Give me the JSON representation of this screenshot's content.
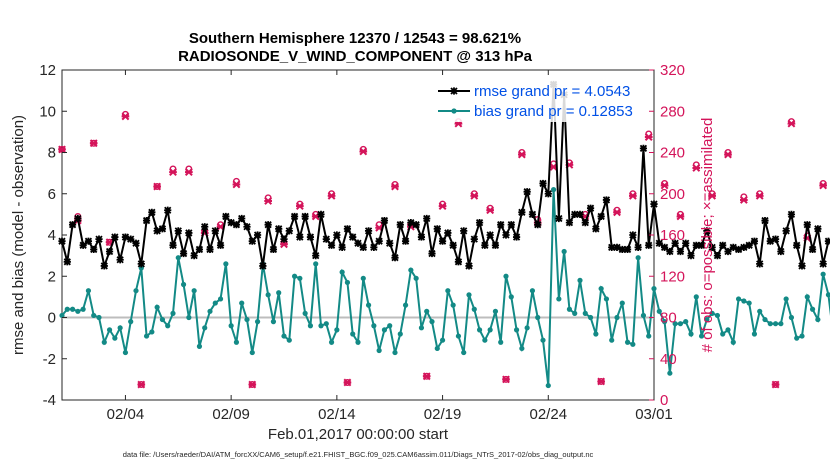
{
  "chart_data": {
    "type": "line",
    "title_line1": "Southern Hemisphere 12370 / 12543 = 98.621%",
    "title_line2": "RADIOSONDE_V_WIND_COMPONENT @ 313 hPa",
    "xlabel": "Feb.01,2017 00:00:00 start",
    "ylabel_left": "rmse and bias (model - observation)",
    "ylabel_right": "# of obs: o=possible; ×=assimilated",
    "footnote": "data file: /Users/raeder/DAI/ATM_forcXX/CAM6_setup/f.e21.FHIST_BGC.f09_025.CAM6assim.011/Diags_NTrS_2017-02/obs_diag_output.nc",
    "ylim_left": [
      -4,
      12
    ],
    "ylim_right": [
      0,
      320
    ],
    "xlim": [
      0.0,
      28.0
    ],
    "y_ticks_left": [
      "-4",
      "-2",
      "0",
      "2",
      "4",
      "6",
      "8",
      "10",
      "12"
    ],
    "y_ticks_right": [
      "0",
      "40",
      "80",
      "120",
      "160",
      "200",
      "240",
      "280",
      "320"
    ],
    "x_ticks": [
      {
        "label": "02/04",
        "pos": 3
      },
      {
        "label": "02/09",
        "pos": 8
      },
      {
        "label": "02/14",
        "pos": 13
      },
      {
        "label": "02/19",
        "pos": 18
      },
      {
        "label": "02/24",
        "pos": 23
      },
      {
        "label": "03/01",
        "pos": 28
      }
    ],
    "colors": {
      "rmse": "#000000",
      "bias": "#138a86",
      "obs": "#d4145a",
      "zero": "#bdbdbd",
      "legend_text": "#0050e6"
    },
    "legend": [
      {
        "name": "rmse grand pr = 4.0543",
        "series": "rmse"
      },
      {
        "name": "bias grand pr = 0.12853",
        "series": "bias"
      }
    ],
    "series": [
      {
        "name": "rmse",
        "x_start": 0.0,
        "x_step": 0.25,
        "values": [
          3.7,
          2.7,
          4.5,
          4.8,
          3.5,
          3.7,
          3.3,
          3.8,
          2.5,
          3.2,
          3.9,
          2.8,
          3.9,
          3.8,
          3.6,
          2.6,
          4.7,
          5.1,
          4.2,
          4.3,
          5.2,
          3.5,
          4.2,
          3.1,
          4.1,
          3.0,
          3.3,
          4.4,
          3.3,
          4.2,
          3.5,
          4.9,
          4.6,
          4.5,
          4.8,
          4.4,
          3.7,
          4.0,
          2.5,
          4.5,
          3.3,
          4.3,
          3.8,
          4.2,
          4.9,
          3.9,
          4.9,
          3.9,
          3.0,
          5.0,
          3.8,
          3.5,
          4.0,
          3.4,
          4.3,
          3.9,
          3.6,
          3.4,
          4.2,
          3.4,
          3.7,
          4.7,
          3.6,
          2.9,
          4.5,
          3.7,
          4.6,
          4.5,
          3.9,
          4.8,
          3.1,
          4.3,
          3.7,
          4.1,
          3.5,
          2.7,
          4.2,
          2.5,
          3.8,
          4.6,
          3.5,
          4.0,
          3.5,
          4.5,
          4.0,
          4.5,
          3.9,
          5.1,
          6.1,
          5.0,
          4.5,
          6.5,
          6.0,
          11.3,
          4.8,
          10.8,
          4.6,
          5.0,
          5.0,
          4.6,
          5.3,
          4.3,
          4.9,
          5.7,
          3.4,
          3.4,
          3.3,
          3.3,
          4.0,
          3.4,
          8.2,
          3.5,
          5.5,
          3.6,
          3.4,
          3.2,
          3.6,
          3.2,
          3.6,
          3.0,
          3.5,
          3.5,
          4.2,
          3.4,
          3.0,
          3.5,
          3.2,
          3.4,
          3.3,
          3.4,
          3.5,
          3.7,
          2.6,
          4.7,
          3.7,
          3.8,
          3.2,
          4.2,
          5.0,
          3.5,
          2.5,
          4.5,
          3.3,
          4.3,
          2.6,
          3.7,
          3.5,
          3.5,
          3.1,
          3.5,
          3.1,
          3.4,
          3.6,
          3.2,
          3.4,
          3.5,
          3.4
        ]
      },
      {
        "name": "bias",
        "x_start": 0.0,
        "x_step": 0.25,
        "values": [
          0.1,
          0.4,
          0.4,
          0.3,
          0.4,
          1.3,
          0.1,
          0.0,
          -1.2,
          -0.6,
          -1.0,
          -0.5,
          -1.7,
          -0.2,
          1.3,
          2.4,
          -0.9,
          -0.7,
          0.5,
          -0.1,
          -0.4,
          0.2,
          2.9,
          1.6,
          0.0,
          1.3,
          -1.4,
          -0.5,
          0.3,
          0.7,
          0.9,
          2.6,
          -0.4,
          -1.2,
          0.7,
          -0.1,
          -1.7,
          -0.2,
          2.6,
          1.1,
          -0.2,
          1.2,
          -0.9,
          -1.1,
          2.0,
          1.9,
          0.2,
          -0.4,
          2.6,
          -0.4,
          -0.3,
          -1.2,
          -0.6,
          2.2,
          1.7,
          -0.8,
          -1.2,
          1.9,
          0.6,
          -0.4,
          -1.6,
          -0.6,
          -0.4,
          -1.7,
          -0.8,
          0.6,
          2.3,
          1.9,
          -0.5,
          0.3,
          -0.2,
          -1.5,
          -1.1,
          1.3,
          0.6,
          -0.9,
          -1.7,
          1.1,
          0.4,
          -0.6,
          -1.1,
          -0.6,
          0.3,
          -1.2,
          2.0,
          1.0,
          -0.6,
          -1.5,
          -0.5,
          1.3,
          0.0,
          -1.1,
          -3.3,
          6.2,
          0.9,
          3.2,
          0.4,
          0.2,
          1.8,
          0.2,
          0.0,
          -0.8,
          1.4,
          0.9,
          -1.1,
          0.0,
          0.7,
          -1.2,
          -1.3,
          2.9,
          0.1,
          -0.9,
          1.4,
          0.3,
          -0.2,
          -2.7,
          -0.3,
          -0.3,
          -0.2,
          -0.8,
          1.0,
          -0.9,
          -0.1,
          0.2,
          0.1,
          -0.8,
          -0.6,
          -1.2,
          0.9,
          0.8,
          0.7,
          -0.8,
          0.3,
          -0.1,
          -0.3,
          -0.3,
          -0.3,
          0.9,
          0.0,
          -1.0,
          -0.9,
          1.0,
          0.4,
          -0.1,
          2.1,
          1.1,
          -1.0,
          -1.2,
          1.3,
          0.9,
          1.0,
          1.2,
          -0.1,
          -0.6,
          -0.6
        ]
      },
      {
        "name": "obs_possible",
        "x_start": 0.0,
        "x_step": 0.75,
        "values": [
          243,
          178,
          249,
          153,
          277,
          15,
          207,
          224,
          224,
          164,
          170,
          212,
          15,
          196,
          153,
          190,
          180,
          200,
          17,
          243,
          170,
          209,
          170,
          23,
          190,
          270,
          200,
          186,
          20,
          240,
          175,
          229,
          230,
          180,
          18,
          184,
          200,
          258,
          210,
          180,
          228,
          200,
          240,
          197,
          200,
          15,
          270,
          159,
          210,
          240,
          209,
          180,
          243,
          239,
          212,
          209,
          193,
          175,
          160,
          30
        ]
      },
      {
        "name": "obs_assimilated",
        "x_start": 0.0,
        "x_step": 0.75,
        "values": [
          243,
          174,
          249,
          153,
          275,
          15,
          207,
          221,
          221,
          162,
          168,
          209,
          15,
          193,
          151,
          188,
          178,
          198,
          17,
          241,
          167,
          207,
          168,
          23,
          188,
          268,
          198,
          184,
          20,
          238,
          172,
          226,
          228,
          178,
          18,
          182,
          198,
          255,
          208,
          178,
          225,
          198,
          238,
          194,
          198,
          15,
          268,
          157,
          208,
          238,
          207,
          178,
          241,
          236,
          210,
          206,
          190,
          172,
          158,
          30
        ]
      }
    ]
  }
}
